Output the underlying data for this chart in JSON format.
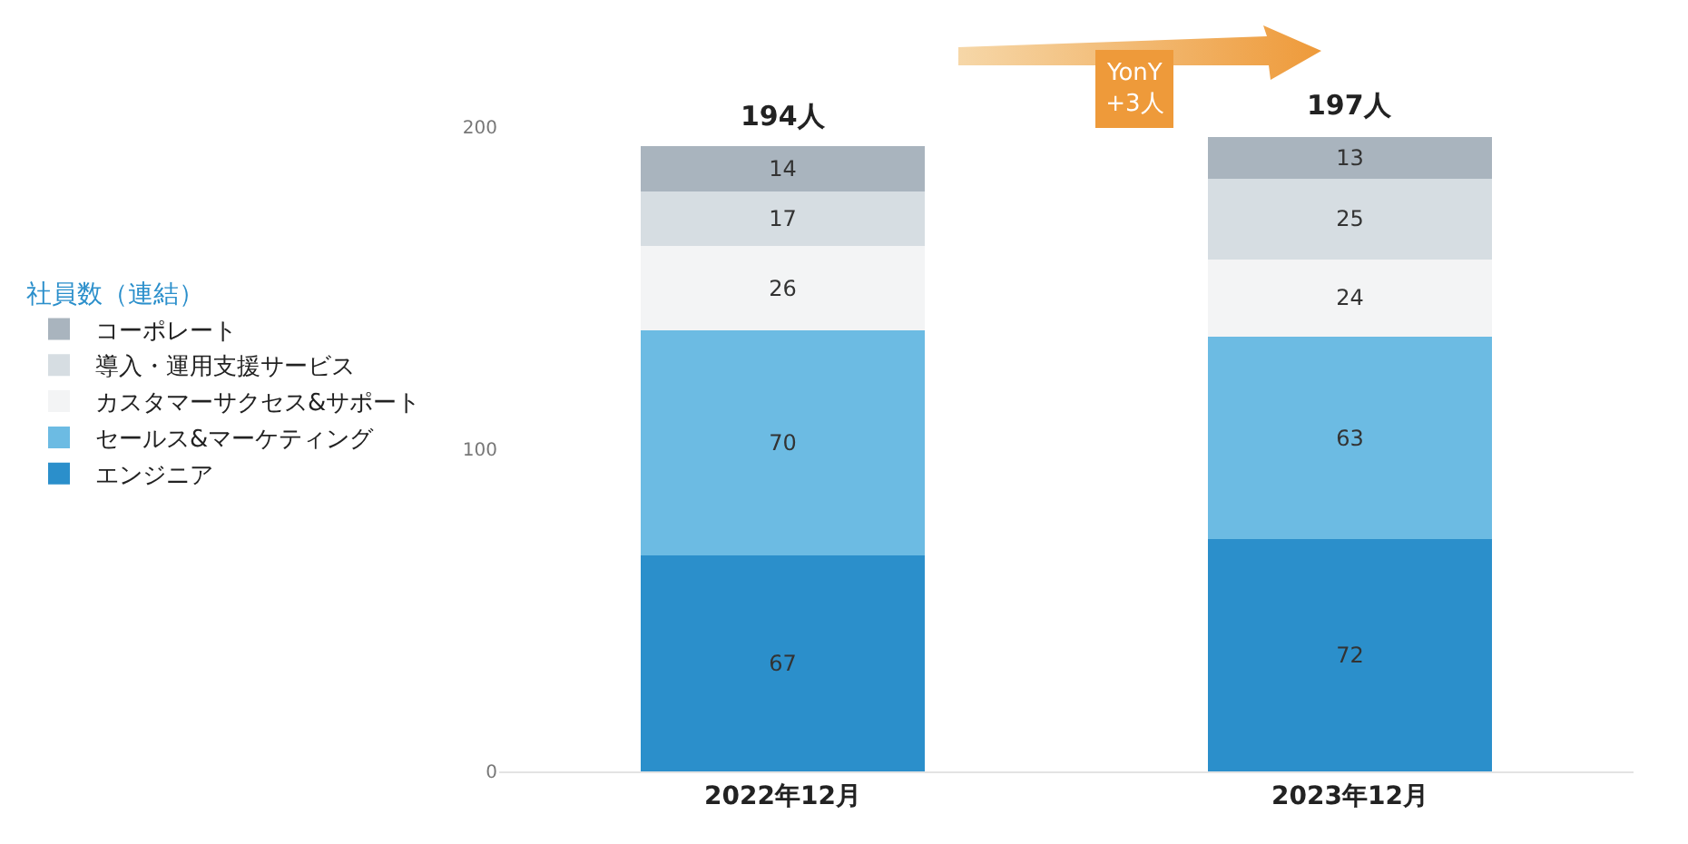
{
  "chart_data": {
    "type": "bar",
    "stacked": true,
    "categories": [
      "2022年12月",
      "2023年12月"
    ],
    "series": [
      {
        "name": "エンジニア",
        "color": "#2b8fcb",
        "values": [
          67,
          72
        ]
      },
      {
        "name": "セールス&マーケティング",
        "color": "#6cbbe3",
        "values": [
          70,
          63
        ]
      },
      {
        "name": "カスタマーサクセス&サポート",
        "color": "#f3f4f5",
        "values": [
          26,
          24
        ]
      },
      {
        "name": "導入・運用支援サービス",
        "color": "#d6dde2",
        "values": [
          17,
          25
        ]
      },
      {
        "name": "コーポレート",
        "color": "#a9b4be",
        "values": [
          14,
          13
        ]
      }
    ],
    "ylim": [
      0,
      200
    ],
    "yticks": [
      0,
      100,
      200
    ],
    "grid": false,
    "legend": "left",
    "legend_title": "社員数（連結）",
    "data_labels": true,
    "totals": [
      "194人",
      "197人"
    ],
    "annotations": [
      "YonY\n+3人"
    ]
  }
}
